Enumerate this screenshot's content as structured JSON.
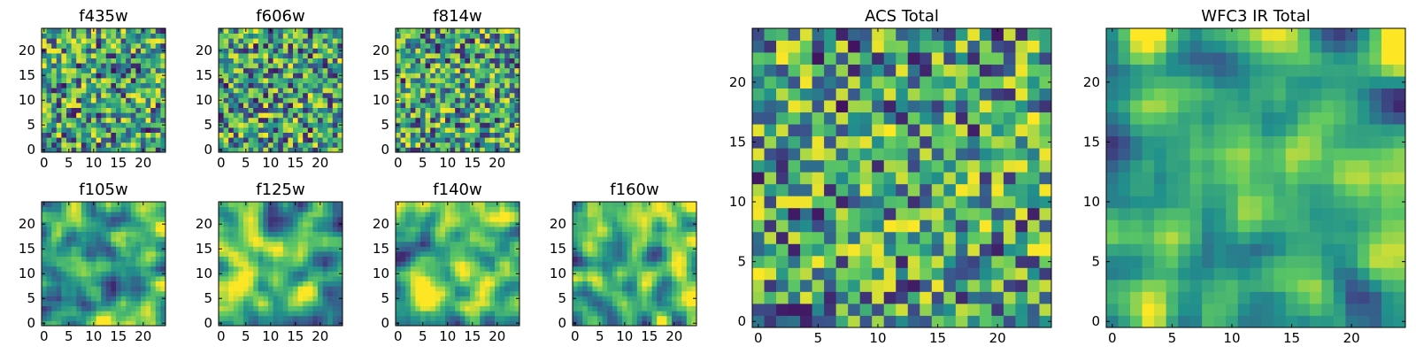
{
  "chart_data": [
    {
      "type": "heatmap",
      "title": "f435w",
      "xlim": [
        0,
        24
      ],
      "ylim": [
        0,
        24
      ],
      "xticks": [
        "0",
        "5",
        "10",
        "15",
        "20"
      ],
      "yticks": [
        "0",
        "5",
        "10",
        "15",
        "20"
      ],
      "pattern": "noisy",
      "seed": 11
    },
    {
      "type": "heatmap",
      "title": "f606w",
      "xlim": [
        0,
        24
      ],
      "ylim": [
        0,
        24
      ],
      "xticks": [
        "0",
        "5",
        "10",
        "15",
        "20"
      ],
      "yticks": [
        "0",
        "5",
        "10",
        "15",
        "20"
      ],
      "pattern": "noisy",
      "seed": 23
    },
    {
      "type": "heatmap",
      "title": "f814w",
      "xlim": [
        0,
        24
      ],
      "ylim": [
        0,
        24
      ],
      "xticks": [
        "0",
        "5",
        "10",
        "15",
        "20"
      ],
      "yticks": [
        "0",
        "5",
        "10",
        "15",
        "20"
      ],
      "pattern": "noisy",
      "seed": 37
    },
    {
      "type": "heatmap",
      "title": "f105w",
      "xlim": [
        0,
        24
      ],
      "ylim": [
        0,
        24
      ],
      "xticks": [
        "0",
        "5",
        "10",
        "15",
        "20"
      ],
      "yticks": [
        "0",
        "5",
        "10",
        "15",
        "20"
      ],
      "pattern": "smooth",
      "seed": 41
    },
    {
      "type": "heatmap",
      "title": "f125w",
      "xlim": [
        0,
        24
      ],
      "ylim": [
        0,
        24
      ],
      "xticks": [
        "0",
        "5",
        "10",
        "15",
        "20"
      ],
      "yticks": [
        "0",
        "5",
        "10",
        "15",
        "20"
      ],
      "pattern": "smooth",
      "seed": 53
    },
    {
      "type": "heatmap",
      "title": "f140w",
      "xlim": [
        0,
        24
      ],
      "ylim": [
        0,
        24
      ],
      "xticks": [
        "0",
        "5",
        "10",
        "15",
        "20"
      ],
      "yticks": [
        "0",
        "5",
        "10",
        "15",
        "20"
      ],
      "pattern": "smooth",
      "seed": 67
    },
    {
      "type": "heatmap",
      "title": "f160w",
      "xlim": [
        0,
        24
      ],
      "ylim": [
        0,
        24
      ],
      "xticks": [
        "0",
        "5",
        "10",
        "15",
        "20"
      ],
      "yticks": [
        "0",
        "5",
        "10",
        "15",
        "20"
      ],
      "pattern": "smooth",
      "seed": 79
    },
    {
      "type": "heatmap",
      "title": "ACS Total",
      "xlim": [
        0,
        24
      ],
      "ylim": [
        0,
        24
      ],
      "xticks": [
        "0",
        "5",
        "10",
        "15",
        "20"
      ],
      "yticks": [
        "0",
        "5",
        "10",
        "15",
        "20"
      ],
      "pattern": "noisy",
      "seed": 97
    },
    {
      "type": "heatmap",
      "title": "WFC3 IR Total",
      "xlim": [
        0,
        24
      ],
      "ylim": [
        0,
        24
      ],
      "xticks": [
        "0",
        "5",
        "10",
        "15",
        "20"
      ],
      "yticks": [
        "0",
        "5",
        "10",
        "15",
        "20"
      ],
      "pattern": "smooth",
      "seed": 113
    }
  ],
  "colors": {
    "colormap": [
      "#440154",
      "#3b528b",
      "#21918c",
      "#5ec962",
      "#fde725"
    ],
    "axes": "#000000"
  }
}
